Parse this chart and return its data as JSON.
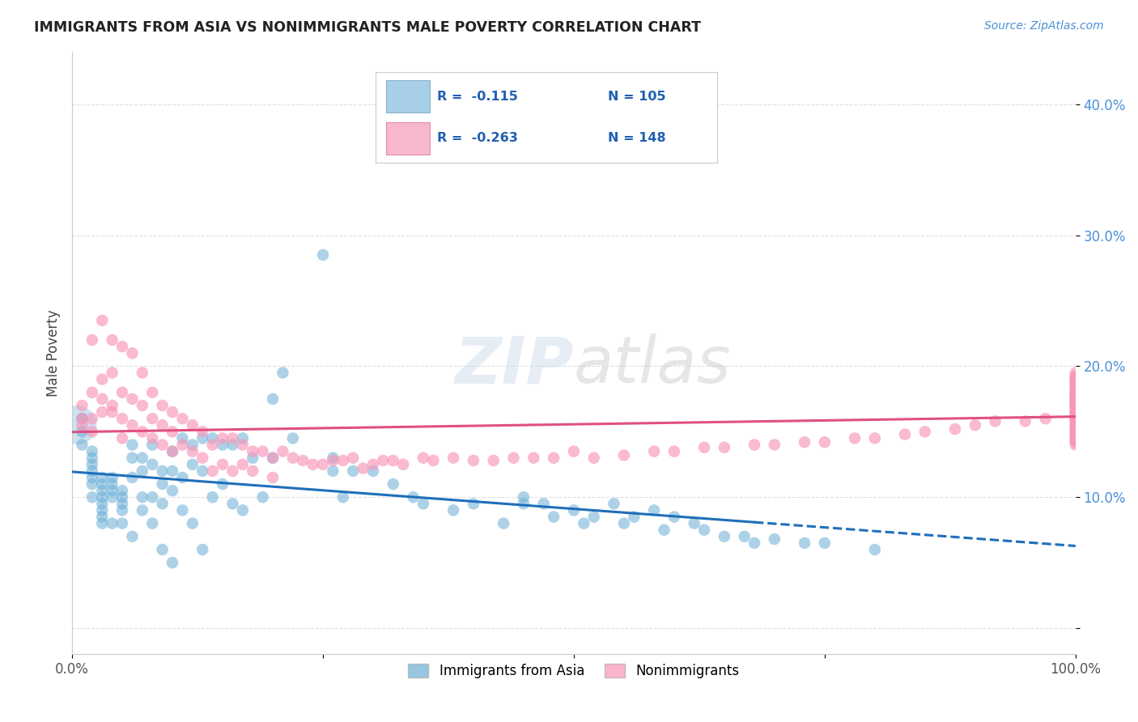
{
  "title": "IMMIGRANTS FROM ASIA VS NONIMMIGRANTS MALE POVERTY CORRELATION CHART",
  "source": "Source: ZipAtlas.com",
  "ylabel": "Male Poverty",
  "xlim": [
    0.0,
    1.0
  ],
  "ylim": [
    -0.02,
    0.44
  ],
  "watermark": "ZIPatlas",
  "background_color": "#ffffff",
  "grid_color": "#dddddd",
  "asia_color": "#6baed6",
  "asia_trend_color": "#1f6fba",
  "nonimm_color": "#f895b8",
  "nonimm_trend_color": "#e05080",
  "asia_x": [
    0.01,
    0.01,
    0.01,
    0.02,
    0.02,
    0.02,
    0.02,
    0.02,
    0.02,
    0.02,
    0.03,
    0.03,
    0.03,
    0.03,
    0.03,
    0.03,
    0.03,
    0.03,
    0.04,
    0.04,
    0.04,
    0.04,
    0.04,
    0.05,
    0.05,
    0.05,
    0.05,
    0.05,
    0.06,
    0.06,
    0.06,
    0.06,
    0.07,
    0.07,
    0.07,
    0.07,
    0.08,
    0.08,
    0.08,
    0.08,
    0.09,
    0.09,
    0.09,
    0.09,
    0.1,
    0.1,
    0.1,
    0.1,
    0.11,
    0.11,
    0.11,
    0.12,
    0.12,
    0.12,
    0.13,
    0.13,
    0.13,
    0.14,
    0.14,
    0.15,
    0.15,
    0.16,
    0.16,
    0.17,
    0.17,
    0.18,
    0.19,
    0.2,
    0.2,
    0.21,
    0.22,
    0.25,
    0.26,
    0.26,
    0.27,
    0.28,
    0.3,
    0.32,
    0.34,
    0.35,
    0.38,
    0.4,
    0.43,
    0.45,
    0.47,
    0.5,
    0.51,
    0.54,
    0.56,
    0.58,
    0.6,
    0.62,
    0.65,
    0.68,
    0.73,
    0.45,
    0.48,
    0.52,
    0.55,
    0.59,
    0.63,
    0.67,
    0.7,
    0.75,
    0.8
  ],
  "asia_y": [
    0.16,
    0.15,
    0.14,
    0.135,
    0.13,
    0.125,
    0.12,
    0.115,
    0.11,
    0.1,
    0.115,
    0.11,
    0.105,
    0.1,
    0.095,
    0.09,
    0.085,
    0.08,
    0.115,
    0.11,
    0.105,
    0.1,
    0.08,
    0.105,
    0.1,
    0.095,
    0.09,
    0.08,
    0.14,
    0.13,
    0.115,
    0.07,
    0.13,
    0.12,
    0.1,
    0.09,
    0.14,
    0.125,
    0.1,
    0.08,
    0.12,
    0.11,
    0.095,
    0.06,
    0.135,
    0.12,
    0.105,
    0.05,
    0.145,
    0.115,
    0.09,
    0.14,
    0.125,
    0.08,
    0.145,
    0.12,
    0.06,
    0.145,
    0.1,
    0.14,
    0.11,
    0.14,
    0.095,
    0.145,
    0.09,
    0.13,
    0.1,
    0.175,
    0.13,
    0.195,
    0.145,
    0.285,
    0.13,
    0.12,
    0.1,
    0.12,
    0.12,
    0.11,
    0.1,
    0.095,
    0.09,
    0.095,
    0.08,
    0.1,
    0.095,
    0.09,
    0.08,
    0.095,
    0.085,
    0.09,
    0.085,
    0.08,
    0.07,
    0.065,
    0.065,
    0.095,
    0.085,
    0.085,
    0.08,
    0.075,
    0.075,
    0.07,
    0.068,
    0.065,
    0.06
  ],
  "nonimm_x": [
    0.01,
    0.01,
    0.01,
    0.02,
    0.02,
    0.02,
    0.02,
    0.03,
    0.03,
    0.03,
    0.03,
    0.04,
    0.04,
    0.04,
    0.04,
    0.05,
    0.05,
    0.05,
    0.05,
    0.06,
    0.06,
    0.06,
    0.07,
    0.07,
    0.07,
    0.08,
    0.08,
    0.08,
    0.09,
    0.09,
    0.09,
    0.1,
    0.1,
    0.1,
    0.11,
    0.11,
    0.12,
    0.12,
    0.13,
    0.13,
    0.14,
    0.14,
    0.15,
    0.15,
    0.16,
    0.16,
    0.17,
    0.17,
    0.18,
    0.18,
    0.19,
    0.2,
    0.2,
    0.21,
    0.22,
    0.23,
    0.24,
    0.25,
    0.26,
    0.27,
    0.28,
    0.29,
    0.3,
    0.31,
    0.32,
    0.33,
    0.35,
    0.36,
    0.38,
    0.4,
    0.42,
    0.44,
    0.46,
    0.48,
    0.5,
    0.52,
    0.55,
    0.58,
    0.6,
    0.63,
    0.65,
    0.68,
    0.7,
    0.73,
    0.75,
    0.78,
    0.8,
    0.83,
    0.85,
    0.88,
    0.9,
    0.92,
    0.95,
    0.97,
    1.0,
    1.0,
    1.0,
    1.0,
    1.0,
    1.0,
    1.0,
    1.0,
    1.0,
    1.0,
    1.0,
    1.0,
    1.0,
    1.0,
    1.0,
    1.0,
    1.0,
    1.0,
    1.0,
    1.0,
    1.0,
    1.0,
    1.0,
    1.0,
    1.0,
    1.0,
    1.0,
    1.0,
    1.0,
    1.0,
    1.0,
    1.0,
    1.0,
    1.0,
    1.0,
    1.0,
    1.0,
    1.0,
    1.0,
    1.0,
    1.0,
    1.0,
    1.0,
    1.0,
    1.0,
    1.0,
    1.0,
    1.0,
    1.0,
    1.0,
    1.0,
    1.0,
    1.0,
    1.0
  ],
  "nonimm_y": [
    0.17,
    0.16,
    0.155,
    0.22,
    0.18,
    0.16,
    0.15,
    0.235,
    0.19,
    0.175,
    0.165,
    0.22,
    0.195,
    0.17,
    0.165,
    0.215,
    0.18,
    0.16,
    0.145,
    0.21,
    0.175,
    0.155,
    0.195,
    0.17,
    0.15,
    0.18,
    0.16,
    0.145,
    0.17,
    0.155,
    0.14,
    0.165,
    0.15,
    0.135,
    0.16,
    0.14,
    0.155,
    0.135,
    0.15,
    0.13,
    0.14,
    0.12,
    0.145,
    0.125,
    0.145,
    0.12,
    0.14,
    0.125,
    0.135,
    0.12,
    0.135,
    0.13,
    0.115,
    0.135,
    0.13,
    0.128,
    0.125,
    0.125,
    0.128,
    0.128,
    0.13,
    0.122,
    0.125,
    0.128,
    0.128,
    0.125,
    0.13,
    0.128,
    0.13,
    0.128,
    0.128,
    0.13,
    0.13,
    0.13,
    0.135,
    0.13,
    0.132,
    0.135,
    0.135,
    0.138,
    0.138,
    0.14,
    0.14,
    0.142,
    0.142,
    0.145,
    0.145,
    0.148,
    0.15,
    0.152,
    0.155,
    0.158,
    0.158,
    0.16,
    0.165,
    0.165,
    0.17,
    0.17,
    0.172,
    0.175,
    0.175,
    0.178,
    0.18,
    0.182,
    0.185,
    0.185,
    0.188,
    0.188,
    0.19,
    0.19,
    0.192,
    0.175,
    0.178,
    0.17,
    0.168,
    0.172,
    0.165,
    0.162,
    0.16,
    0.158,
    0.155,
    0.152,
    0.15,
    0.148,
    0.145,
    0.143,
    0.142,
    0.14,
    0.145,
    0.148,
    0.15,
    0.152,
    0.155,
    0.158,
    0.16,
    0.162,
    0.165,
    0.168,
    0.17,
    0.172,
    0.175,
    0.178,
    0.18,
    0.182,
    0.185,
    0.188,
    0.192,
    0.195
  ]
}
